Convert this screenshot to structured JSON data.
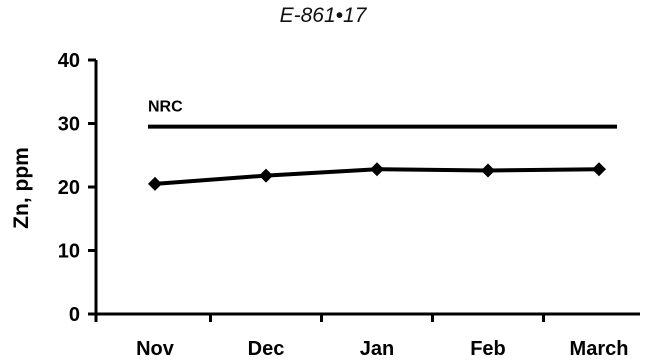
{
  "page": {
    "header": "E-861•17"
  },
  "chart_data": {
    "type": "line",
    "categories": [
      "Nov",
      "Dec",
      "Jan",
      "Feb",
      "March"
    ],
    "series": [
      {
        "values": [
          20.5,
          21.8,
          22.8,
          22.6,
          22.8
        ],
        "color": "#000000",
        "marker": "diamond"
      }
    ],
    "reference_line": {
      "label": "NRC",
      "value": 29.5,
      "color": "#000000"
    },
    "ylabel": "Zn, ppm",
    "xlabel": "",
    "ylim": [
      0,
      40
    ],
    "yticks": [
      0,
      10,
      20,
      30,
      40
    ],
    "grid": false,
    "legend": "none"
  }
}
